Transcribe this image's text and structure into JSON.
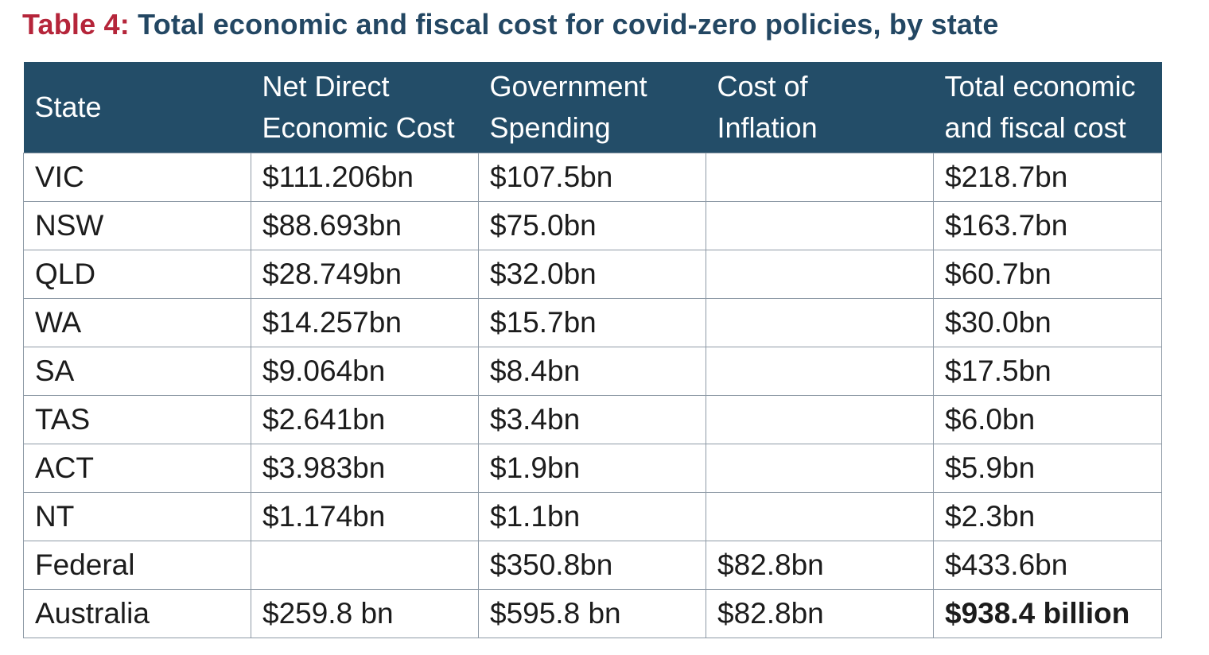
{
  "title": {
    "label": "Table 4:",
    "text": "Total economic and fiscal cost for covid-zero policies, by state"
  },
  "colors": {
    "title_label": "#b5253a",
    "title_text": "#234763",
    "header_bg": "#234d68",
    "header_text": "#ffffff",
    "grid": "#8e9aa6"
  },
  "table": {
    "headers": [
      [
        "State"
      ],
      [
        "Net Direct",
        "Economic Cost"
      ],
      [
        "Government",
        "Spending"
      ],
      [
        "Cost of",
        "Inflation"
      ],
      [
        "Total economic",
        "and fiscal cost"
      ]
    ],
    "rows": [
      [
        "VIC",
        "$111.206bn",
        "$107.5bn",
        "",
        "$218.7bn"
      ],
      [
        "NSW",
        "$88.693bn",
        "$75.0bn",
        "",
        "$163.7bn"
      ],
      [
        "QLD",
        "$28.749bn",
        "$32.0bn",
        "",
        "$60.7bn"
      ],
      [
        "WA",
        "$14.257bn",
        "$15.7bn",
        "",
        "$30.0bn"
      ],
      [
        "SA",
        "$9.064bn",
        "$8.4bn",
        "",
        "$17.5bn"
      ],
      [
        "TAS",
        "$2.641bn",
        "$3.4bn",
        "",
        "$6.0bn"
      ],
      [
        "ACT",
        "$3.983bn",
        "$1.9bn",
        "",
        "$5.9bn"
      ],
      [
        "NT",
        "$1.174bn",
        "$1.1bn",
        "",
        "$2.3bn"
      ],
      [
        "Federal",
        "",
        "$350.8bn",
        "$82.8bn",
        "$433.6bn"
      ],
      [
        "Australia",
        "$259.8 bn",
        "$595.8 bn",
        "$82.8bn",
        "$938.4 billion"
      ]
    ]
  }
}
